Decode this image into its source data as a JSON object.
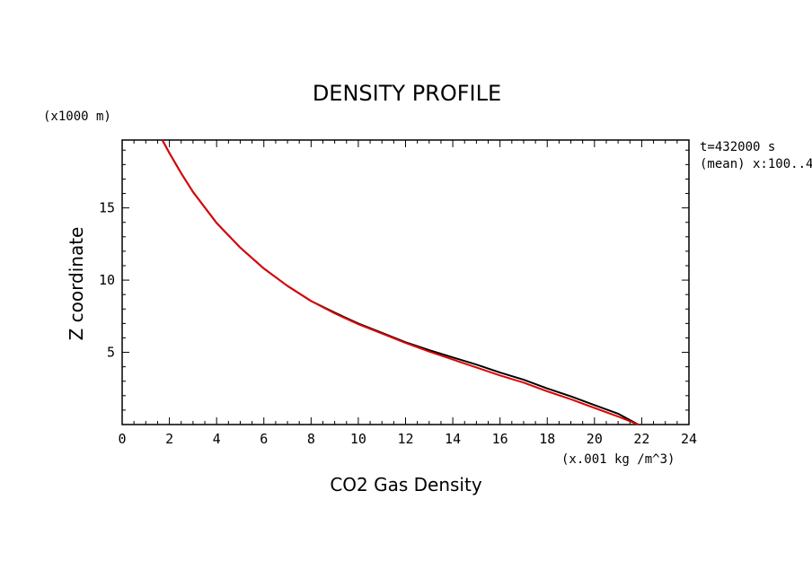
{
  "chart_data": {
    "type": "line",
    "title": "DENSITY PROFILE",
    "xlabel": "CO2 Gas Density",
    "ylabel": "Z coordinate",
    "x_unit": "(x.001 kg /m^3)",
    "y_unit": "(x1000 m)",
    "annotation_lines": [
      "t=432000 s",
      "(mean) x:100..4"
    ],
    "xlim": [
      0,
      24
    ],
    "ylim": [
      0,
      19.7
    ],
    "x_ticks": [
      0,
      2,
      4,
      6,
      8,
      10,
      12,
      14,
      16,
      18,
      20,
      22,
      24
    ],
    "y_ticks": [
      5,
      10,
      15
    ],
    "grid": false,
    "series": [
      {
        "color": "#000000",
        "x": [
          21.85,
          21.0,
          20.0,
          19.0,
          18.0,
          17.0,
          16.0,
          15.0,
          14.0,
          13.0,
          12.0,
          11.0,
          10.0,
          9.0,
          8.0,
          7.0,
          6.0,
          5.0,
          4.0,
          3.0,
          2.5,
          2.0,
          1.7
        ],
        "y": [
          0.0,
          0.75,
          1.35,
          1.95,
          2.5,
          3.1,
          3.6,
          4.15,
          4.65,
          5.15,
          5.7,
          6.35,
          7.0,
          7.75,
          8.55,
          9.6,
          10.8,
          12.25,
          13.95,
          16.1,
          17.4,
          18.8,
          19.7
        ]
      },
      {
        "color": "#e00000",
        "x": [
          21.85,
          21.0,
          20.0,
          19.0,
          18.0,
          17.0,
          16.0,
          15.0,
          14.0,
          13.0,
          12.0,
          11.0,
          10.0,
          9.0,
          8.0,
          7.0,
          6.0,
          5.0,
          4.0,
          3.0,
          2.5,
          2.0,
          1.7
        ],
        "y": [
          0.0,
          0.55,
          1.15,
          1.75,
          2.3,
          2.9,
          3.4,
          3.95,
          4.5,
          5.05,
          5.65,
          6.3,
          6.95,
          7.7,
          8.55,
          9.6,
          10.8,
          12.25,
          13.95,
          16.1,
          17.4,
          18.8,
          19.7
        ]
      }
    ]
  }
}
